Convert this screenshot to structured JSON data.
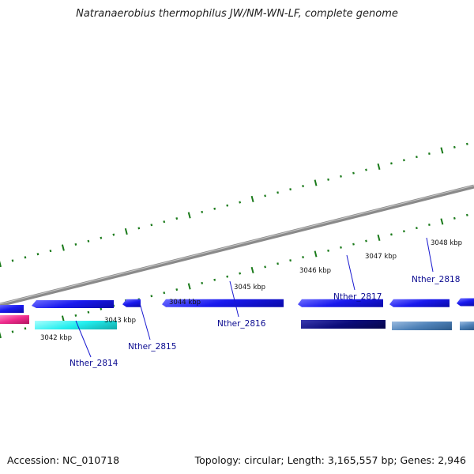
{
  "title": "Natranaerobius thermophilus JW/NM-WN-LF, complete genome",
  "footer": {
    "accession": "Accession: NC_010718",
    "summary": "Topology: circular; Length: 3,165,557 bp; Genes: 2,946"
  },
  "ticks": [
    "3042 kbp",
    "3043 kbp",
    "3044 kbp",
    "3045 kbp",
    "3046 kbp",
    "3047 kbp",
    "3048 kbp"
  ],
  "genes": [
    "Nther_2814",
    "Nther_2815",
    "Nther_2816",
    "Nther_2817",
    "Nther_2818"
  ],
  "colors": {
    "backbone": "#8a8a8a",
    "gene_blue": "#1a1aee",
    "gene_navy": "#0c0c7a",
    "gene_cyan": "#22eeee",
    "gene_pink": "#ee2b8c",
    "gene_steel": "#4f82b8",
    "tick_green": "#1a7a1a",
    "label_navy": "#0a0a90"
  }
}
